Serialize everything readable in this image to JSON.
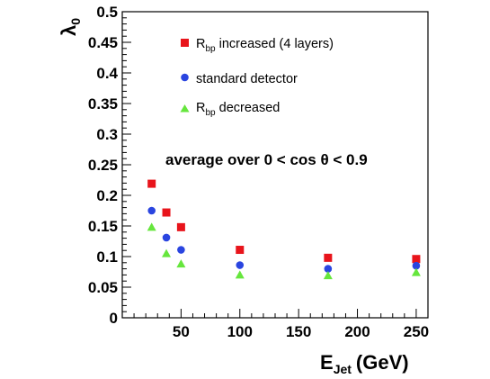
{
  "chart_data": {
    "type": "scatter",
    "xlabel": "E",
    "xlabel_sub": "Jet",
    "xlabel_unit": "(GeV)",
    "ylabel": "λ",
    "ylabel_sub": "0",
    "xlim": [
      0,
      260
    ],
    "ylim": [
      0,
      0.5
    ],
    "xticks": [
      50,
      100,
      150,
      200,
      250
    ],
    "yticks": [
      0,
      0.05,
      0.1,
      0.15,
      0.2,
      0.25,
      0.3,
      0.35,
      0.4,
      0.45,
      0.5
    ],
    "annotation": "average over 0 < cos θ < 0.9",
    "legend_position": "top-left",
    "series": [
      {
        "name": "R",
        "name_sub": "bp",
        "name_suffix": " increased (4 layers)",
        "marker": "square",
        "color": "#e8141b",
        "points": [
          [
            25,
            0.219
          ],
          [
            37.5,
            0.172
          ],
          [
            50,
            0.148
          ],
          [
            100,
            0.111
          ],
          [
            175,
            0.098
          ],
          [
            250,
            0.096
          ]
        ]
      },
      {
        "name": "standard detector",
        "marker": "circle",
        "color": "#2a45e0",
        "points": [
          [
            25,
            0.175
          ],
          [
            37.5,
            0.131
          ],
          [
            50,
            0.111
          ],
          [
            100,
            0.086
          ],
          [
            175,
            0.08
          ],
          [
            250,
            0.085
          ]
        ]
      },
      {
        "name": "R",
        "name_sub": "bp",
        "name_suffix": " decreased",
        "marker": "triangle",
        "color": "#66e63d",
        "points": [
          [
            25,
            0.148
          ],
          [
            37.5,
            0.105
          ],
          [
            50,
            0.088
          ],
          [
            100,
            0.07
          ],
          [
            175,
            0.069
          ],
          [
            250,
            0.074
          ]
        ]
      }
    ]
  }
}
